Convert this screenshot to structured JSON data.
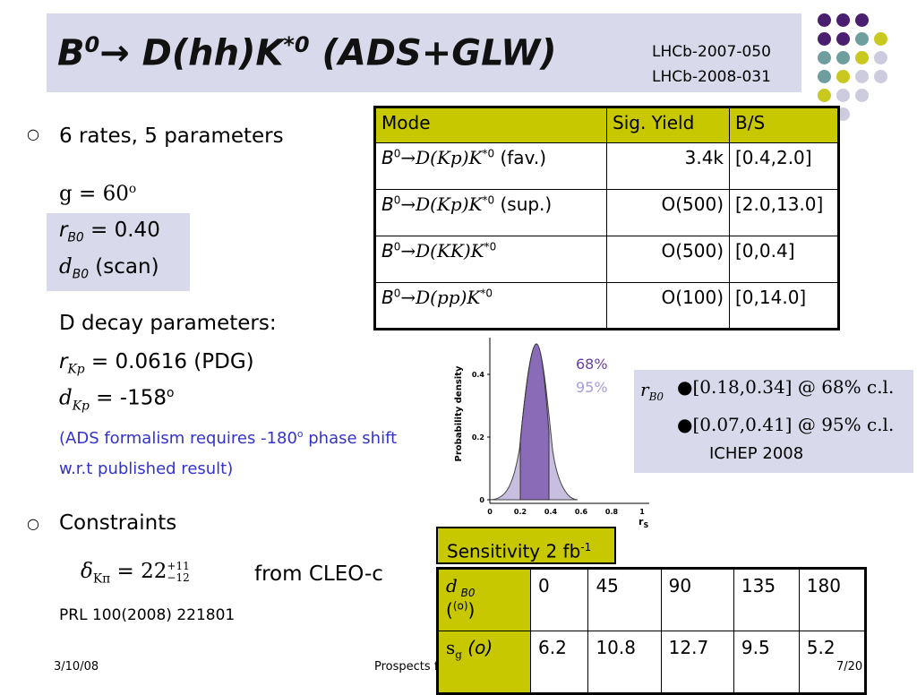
{
  "header": {
    "title": [
      "B",
      "0",
      "→ D(hh)K",
      "*0",
      " (ADS+GLW)"
    ],
    "refs": [
      "LHCb-2007-050",
      "LHCb-2008-031"
    ]
  },
  "left": {
    "rates": "6 rates, 5 parameters",
    "gamma": [
      "g = 60",
      "o"
    ],
    "rB": [
      "r",
      "B0",
      " = 0.40"
    ],
    "dB": [
      "d",
      "B0",
      " (scan)"
    ],
    "decay": "D decay parameters:",
    "rKp": [
      "r",
      "Kp",
      " = 0.0616 (PDG)"
    ],
    "dKp": [
      "d",
      "Kp",
      " = -158",
      "o"
    ],
    "note": [
      "(ADS formalism requires -180",
      "o",
      " phase shift w.r.t published result)"
    ],
    "constraints": "Constraints",
    "formula": [
      "δ",
      "Kπ",
      " = 22",
      "+11",
      "−12"
    ],
    "cleo": "from CLEO-c",
    "prl": "PRL 100(2008) 221801"
  },
  "table": {
    "header": [
      "Mode",
      "Sig. Yield",
      "B/S"
    ],
    "rows": [
      {
        "mode": [
          "B",
          "0",
          "→D(Kp)K",
          "*0",
          " (fav.)"
        ],
        "yield": "3.4k",
        "bs": "[0.4,2.0]"
      },
      {
        "mode": [
          "B",
          "0",
          "→D(Kp)K",
          "*0",
          " (sup.)"
        ],
        "yield": "O(500)",
        "bs": "[2.0,13.0]"
      },
      {
        "mode": [
          "B",
          "0",
          "→D(KK)K",
          "*0",
          ""
        ],
        "yield": "O(500)",
        "bs": "[0,0.4]"
      },
      {
        "mode": [
          "B",
          "0",
          "→D(pp)K",
          "*0",
          ""
        ],
        "yield": "O(100)",
        "bs": "[0,14.0]"
      }
    ]
  },
  "plot": {
    "ylabel": "Probability density",
    "xlabel": [
      "r",
      "S"
    ],
    "yticks": [
      "0",
      "0.2",
      "0.4"
    ],
    "xticks": [
      "0",
      "0.2",
      "0.4",
      "0.6",
      "0.8",
      "1"
    ],
    "legend": [
      "68%",
      "95%"
    ]
  },
  "result": {
    "label": [
      "r",
      "B0"
    ],
    "lines": [
      "●[0.18,0.34] @ 68% c.l.",
      "●[0.07,0.41] @ 95% c.l."
    ],
    "source": "ICHEP 2008"
  },
  "sensitivity": {
    "title": [
      "Sensitivity 2 fb",
      "-1"
    ],
    "header_label": [
      "d",
      " B0",
      "(o)"
    ],
    "columns": [
      "0",
      "45",
      "90",
      "135",
      "180"
    ],
    "row_label": [
      "s",
      "g",
      " (o)"
    ],
    "values": [
      "6.2",
      "10.8",
      "12.7",
      "9.5",
      "5.2"
    ]
  },
  "footer": {
    "date": "3/10/08",
    "talk": "Prospects for γ at LHCb",
    "page": "7/20"
  }
}
